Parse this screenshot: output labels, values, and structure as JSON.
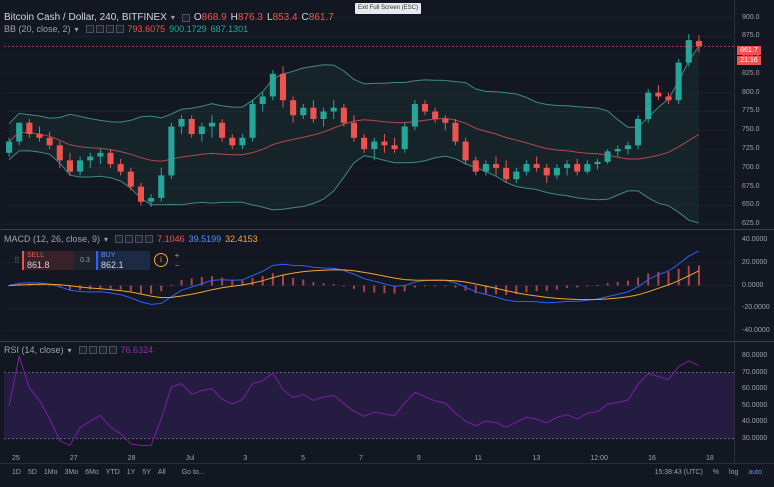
{
  "exit_fullscreen": "Exit Full Screen (ESC)",
  "main_legend": {
    "title": "Bitcoin Cash / Dollar, 240, BITFINEX",
    "caret": "▾",
    "o_key": "O",
    "o_val": "868.9",
    "h_key": "H",
    "h_val": "876.3",
    "l_key": "L",
    "l_val": "853.4",
    "c_key": "C",
    "c_val": "861.7"
  },
  "bb_legend": {
    "title": "BB (20, close, 2)",
    "v1": "793.6075",
    "v2": "900.1729",
    "v3": "687.1301",
    "c1": "#ef5350",
    "c2": "#26a69a",
    "c3": "#26a69a"
  },
  "macd_legend": {
    "title": "MACD (12, 26, close, 9)",
    "v1": "7.1046",
    "v2": "39.5199",
    "v3": "32.4153",
    "c1": "#ef5350",
    "c2": "#5b8cff",
    "c3": "#f7a52a"
  },
  "rsi_legend": {
    "title": "RSI (14, close)",
    "v1": "76.6324",
    "c1": "#9c27b0"
  },
  "price_axis": [
    "900.0",
    "875.0",
    "850.0",
    "825.0",
    "800.0",
    "775.0",
    "750.0",
    "725.0",
    "700.0",
    "675.0",
    "650.0",
    "625.0"
  ],
  "current_price": "861.7",
  "countdown": "21:16",
  "macd_axis": [
    "40.0000",
    "20.0000",
    "0.0000",
    "-20.0000",
    "-40.0000"
  ],
  "rsi_axis": [
    "80.0000",
    "70.0000",
    "60.0000",
    "50.0000",
    "40.0000",
    "30.0000"
  ],
  "time_axis": [
    "25",
    "27",
    "28",
    "Jul",
    "3",
    "5",
    "7",
    "9",
    "11",
    "13",
    "12:00",
    "16",
    "18"
  ],
  "trade_panel": {
    "sell_label": "SELL",
    "sell_value": "861.8",
    "spread": "0.3",
    "buy_label": "BUY",
    "buy_value": "862.1",
    "info": "i",
    "plus": "+",
    "minus": "−"
  },
  "bottom_bar": {
    "ranges": [
      "1D",
      "5D",
      "1Mo",
      "3Mo",
      "6Mo",
      "YTD",
      "1Y",
      "5Y",
      "All"
    ],
    "goto": "Go to...",
    "time": "15:38:43 (UTC)",
    "percent": "%",
    "log": "log",
    "auto": "auto"
  },
  "colors": {
    "up": "#26a69a",
    "down": "#ef5350",
    "bb_band": "#3d8b82",
    "bb_basis": "#b24a4a",
    "macd_line": "#2962ff",
    "signal_line": "#f7a52a",
    "rsi_line": "#7b1fa2",
    "rsi_fill": "#2a1f4a"
  },
  "chart_data": {
    "type": "candlestick",
    "ylim": [
      620,
      910
    ],
    "candles": [
      [
        720,
        740,
        715,
        735
      ],
      [
        735,
        760,
        730,
        760
      ],
      [
        760,
        765,
        740,
        745
      ],
      [
        745,
        755,
        735,
        740
      ],
      [
        740,
        748,
        725,
        730
      ],
      [
        730,
        735,
        700,
        710
      ],
      [
        710,
        720,
        690,
        695
      ],
      [
        695,
        715,
        690,
        710
      ],
      [
        710,
        720,
        700,
        715
      ],
      [
        715,
        725,
        705,
        720
      ],
      [
        720,
        725,
        700,
        705
      ],
      [
        705,
        712,
        690,
        695
      ],
      [
        695,
        700,
        670,
        675
      ],
      [
        675,
        680,
        650,
        655
      ],
      [
        655,
        665,
        648,
        660
      ],
      [
        660,
        700,
        655,
        690
      ],
      [
        690,
        760,
        685,
        755
      ],
      [
        755,
        770,
        745,
        765
      ],
      [
        765,
        770,
        740,
        745
      ],
      [
        745,
        760,
        735,
        755
      ],
      [
        755,
        770,
        740,
        760
      ],
      [
        760,
        765,
        735,
        740
      ],
      [
        740,
        745,
        725,
        730
      ],
      [
        730,
        745,
        725,
        740
      ],
      [
        740,
        790,
        735,
        785
      ],
      [
        785,
        800,
        775,
        795
      ],
      [
        795,
        830,
        790,
        825
      ],
      [
        825,
        835,
        780,
        790
      ],
      [
        790,
        795,
        760,
        770
      ],
      [
        770,
        785,
        765,
        780
      ],
      [
        780,
        790,
        760,
        765
      ],
      [
        765,
        780,
        755,
        775
      ],
      [
        775,
        790,
        765,
        780
      ],
      [
        780,
        785,
        755,
        760
      ],
      [
        760,
        770,
        735,
        740
      ],
      [
        740,
        745,
        720,
        725
      ],
      [
        725,
        740,
        710,
        735
      ],
      [
        735,
        745,
        720,
        730
      ],
      [
        730,
        740,
        720,
        725
      ],
      [
        725,
        760,
        720,
        755
      ],
      [
        755,
        790,
        750,
        785
      ],
      [
        785,
        790,
        770,
        775
      ],
      [
        775,
        780,
        760,
        765
      ],
      [
        765,
        770,
        750,
        760
      ],
      [
        760,
        765,
        730,
        735
      ],
      [
        735,
        740,
        705,
        710
      ],
      [
        710,
        715,
        690,
        695
      ],
      [
        695,
        710,
        690,
        705
      ],
      [
        705,
        715,
        690,
        700
      ],
      [
        700,
        710,
        680,
        685
      ],
      [
        685,
        700,
        680,
        695
      ],
      [
        695,
        710,
        690,
        705
      ],
      [
        705,
        715,
        695,
        700
      ],
      [
        700,
        705,
        680,
        690
      ],
      [
        690,
        705,
        685,
        700
      ],
      [
        700,
        710,
        690,
        705
      ],
      [
        705,
        712,
        690,
        695
      ],
      [
        695,
        710,
        692,
        705
      ],
      [
        705,
        712,
        698,
        708
      ],
      [
        708,
        725,
        705,
        722
      ],
      [
        722,
        730,
        715,
        725
      ],
      [
        725,
        735,
        718,
        730
      ],
      [
        730,
        770,
        725,
        765
      ],
      [
        765,
        805,
        760,
        800
      ],
      [
        800,
        810,
        790,
        795
      ],
      [
        795,
        800,
        785,
        790
      ],
      [
        790,
        845,
        785,
        840
      ],
      [
        840,
        878,
        835,
        870
      ],
      [
        868.9,
        876.3,
        853.4,
        861.7
      ]
    ]
  }
}
